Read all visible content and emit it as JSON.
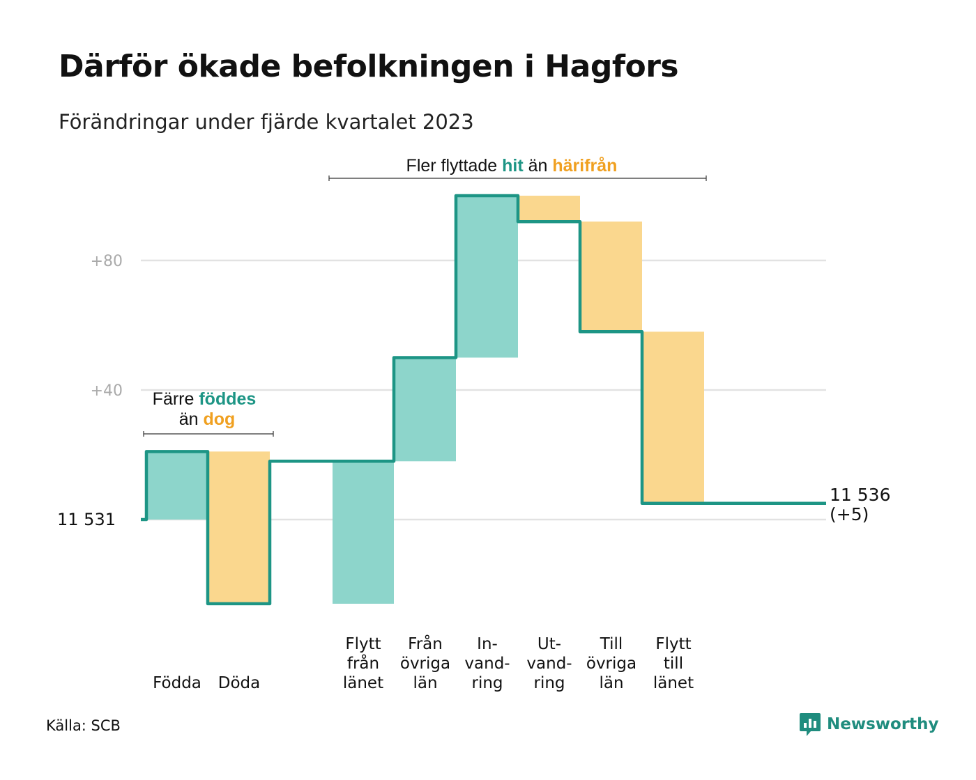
{
  "title": "Därför ökade befolkningen i Hagfors",
  "subtitle": "Förändringar under fjärde kvartalet 2023",
  "source": "Källa: SCB",
  "brand": "Newsworthy",
  "colors": {
    "gain": "#8dd5cb",
    "loss": "#fad78e",
    "line": "#1d9585",
    "gain_text": "#1d9585",
    "loss_text": "#f0a020",
    "grid": "#e2e2e2",
    "tick": "#aaaaaa"
  },
  "annotations": {
    "births": {
      "prefix": "Färre",
      "highlight1": "föddes",
      "middle": "än",
      "highlight2": "dog"
    },
    "moves": {
      "prefix": "Fler flyttade",
      "highlight1": "hit",
      "middle": "än",
      "highlight2": "härifrån"
    }
  },
  "chart_data": {
    "type": "waterfall",
    "start_label": "11  531",
    "end_label_line1": "11 536",
    "end_label_line2": "(+5)",
    "start": 0,
    "end": 5,
    "ylim": [
      -30,
      100
    ],
    "yticks": [
      {
        "value": 40,
        "label": "+40"
      },
      {
        "value": 80,
        "label": "+80"
      }
    ],
    "grid": true,
    "categories": [
      {
        "label": [
          "Född­a"
        ],
        "display": [
          "Födda"
        ],
        "change": 21,
        "kind": "gain",
        "slot": 0
      },
      {
        "label": [
          "Döda"
        ],
        "display": [
          "Döda"
        ],
        "change": -47,
        "kind": "loss",
        "slot": 1
      },
      {
        "display": [
          "Flytt",
          "från",
          "länet"
        ],
        "change": 44,
        "kind": "gain",
        "slot": 3
      },
      {
        "display": [
          "Från",
          "övriga",
          "län"
        ],
        "change": 32,
        "kind": "gain",
        "slot": 4
      },
      {
        "display": [
          "In-",
          "vand-",
          "ring"
        ],
        "change": 50,
        "kind": "gain",
        "slot": 5
      },
      {
        "display": [
          "Ut-",
          "vand-",
          "ring"
        ],
        "change": -8,
        "kind": "loss",
        "slot": 6
      },
      {
        "display": [
          "Till",
          "övriga",
          "län"
        ],
        "change": -34,
        "kind": "loss",
        "slot": 7
      },
      {
        "display": [
          "Flytt",
          "till",
          "länet"
        ],
        "change": -53,
        "kind": "loss",
        "slot": 8
      }
    ]
  }
}
